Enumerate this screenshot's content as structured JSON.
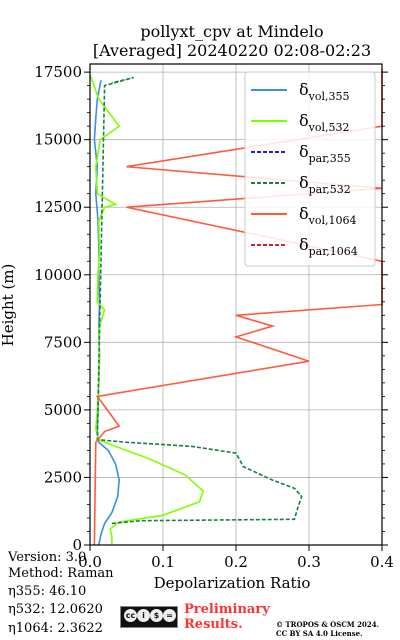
{
  "chart_data": {
    "type": "line",
    "title_line1": "pollyxt_cpv at Mindelo",
    "title_line2": "[Averaged] 20240220 02:08-02:23",
    "xlabel": "Depolarization Ratio",
    "ylabel": "Height (m)",
    "xlim": [
      0.0,
      0.4
    ],
    "ylim": [
      0,
      17800
    ],
    "xticks": [
      0.0,
      0.1,
      0.2,
      0.3,
      0.4
    ],
    "xtick_labels": [
      "0.0",
      "0.1",
      "0.2",
      "0.3",
      "0.4"
    ],
    "yticks": [
      0,
      2500,
      5000,
      7500,
      10000,
      12500,
      15000,
      17500
    ],
    "ytick_labels": [
      "0",
      "2500",
      "5000",
      "7500",
      "10000",
      "12500",
      "15000",
      "17500"
    ],
    "grid": true,
    "legend_position": "top-right",
    "series": [
      {
        "name": "δvol,355",
        "legend_base": "δ",
        "legend_sub": "vol,355",
        "color": "#3a8ee6",
        "dash": "solid",
        "points": [
          [
            0.012,
            0
          ],
          [
            0.015,
            400
          ],
          [
            0.02,
            800
          ],
          [
            0.03,
            1200
          ],
          [
            0.038,
            1800
          ],
          [
            0.04,
            2400
          ],
          [
            0.035,
            3000
          ],
          [
            0.025,
            3500
          ],
          [
            0.012,
            3800
          ],
          [
            0.01,
            4200
          ],
          [
            0.011,
            5000
          ],
          [
            0.012,
            6000
          ],
          [
            0.013,
            7000
          ],
          [
            0.012,
            8000
          ],
          [
            0.013,
            9000
          ],
          [
            0.012,
            10000
          ],
          [
            0.012,
            11000
          ],
          [
            0.011,
            12000
          ],
          [
            0.008,
            13000
          ],
          [
            0.01,
            14000
          ],
          [
            0.006,
            15000
          ],
          [
            0.008,
            15800
          ],
          [
            0.01,
            16500
          ],
          [
            0.015,
            17200
          ]
        ]
      },
      {
        "name": "δvol,532",
        "legend_base": "δ",
        "legend_sub": "vol,532",
        "color": "#7fff00",
        "dash": "solid",
        "points": [
          [
            0.03,
            0
          ],
          [
            0.03,
            300
          ],
          [
            0.028,
            600
          ],
          [
            0.04,
            850
          ],
          [
            0.1,
            1100
          ],
          [
            0.15,
            1600
          ],
          [
            0.155,
            2000
          ],
          [
            0.13,
            2600
          ],
          [
            0.08,
            3200
          ],
          [
            0.03,
            3700
          ],
          [
            0.012,
            3900
          ],
          [
            0.008,
            4300
          ],
          [
            0.01,
            5000
          ],
          [
            0.012,
            6000
          ],
          [
            0.013,
            7000
          ],
          [
            0.012,
            8000
          ],
          [
            0.02,
            8700
          ],
          [
            0.01,
            9000
          ],
          [
            0.011,
            10000
          ],
          [
            0.013,
            11000
          ],
          [
            0.012,
            12000
          ],
          [
            0.02,
            12500
          ],
          [
            0.035,
            12600
          ],
          [
            0.01,
            13000
          ],
          [
            0.008,
            14000
          ],
          [
            0.014,
            15000
          ],
          [
            0.04,
            15500
          ],
          [
            0.012,
            16500
          ],
          [
            0.0,
            17400
          ]
        ]
      },
      {
        "name": "δpar,355",
        "legend_base": "δ",
        "legend_sub": "par,355",
        "color": "#1f1fcc",
        "dash": "dashed",
        "points": []
      },
      {
        "name": "δpar,532",
        "legend_base": "δ",
        "legend_sub": "par,532",
        "color": "#1a8040",
        "dash": "dashed",
        "points": [
          [
            0.03,
            800
          ],
          [
            0.07,
            900
          ],
          [
            0.28,
            950
          ],
          [
            0.285,
            1400
          ],
          [
            0.29,
            1800
          ],
          [
            0.28,
            2100
          ],
          [
            0.25,
            2400
          ],
          [
            0.21,
            2900
          ],
          [
            0.2,
            3400
          ],
          [
            0.14,
            3650
          ],
          [
            0.05,
            3800
          ],
          [
            0.01,
            3900
          ],
          [
            0.02,
            17000
          ],
          [
            0.06,
            17300
          ],
          [
            0.03,
            17100
          ]
        ]
      },
      {
        "name": "δvol,1064",
        "legend_base": "δ",
        "legend_sub": "vol,1064",
        "color": "#ff5a3c",
        "dash": "solid",
        "points": [
          [
            0.006,
            0
          ],
          [
            0.007,
            2000
          ],
          [
            0.008,
            3800
          ],
          [
            0.02,
            4200
          ],
          [
            0.04,
            4400
          ],
          [
            0.01,
            5500
          ],
          [
            0.3,
            6800
          ],
          [
            0.2,
            7700
          ],
          [
            0.25,
            8100
          ],
          [
            0.2,
            8500
          ],
          [
            0.4,
            8900
          ],
          [
            0.4,
            10100
          ],
          [
            0.4,
            10500
          ],
          [
            0.05,
            12500
          ],
          [
            0.4,
            13200
          ],
          [
            0.05,
            14000
          ],
          [
            0.4,
            15500
          ],
          [
            0.4,
            16200
          ],
          [
            0.4,
            16500
          ],
          [
            0.4,
            17200
          ],
          [
            0.4,
            17600
          ]
        ]
      },
      {
        "name": "δpar,1064",
        "legend_base": "δ",
        "legend_sub": "par,1064",
        "color": "#d62728",
        "dash": "dashed",
        "points": []
      }
    ]
  },
  "footer": {
    "version": "Version: 3.0",
    "method": "Method: Raman",
    "eta355": "η355:  46.10",
    "eta532": "η532: 12.0620",
    "eta1064": "η1064: 2.3622",
    "cc_badge": [
      "cc",
      "i",
      "$",
      "="
    ],
    "preliminary_line1": "Preliminary",
    "preliminary_line2": "Results.",
    "copyright_line1": "© TROPOS & OSCM 2024.",
    "copyright_line2": "CC BY SA 4.0 License."
  }
}
